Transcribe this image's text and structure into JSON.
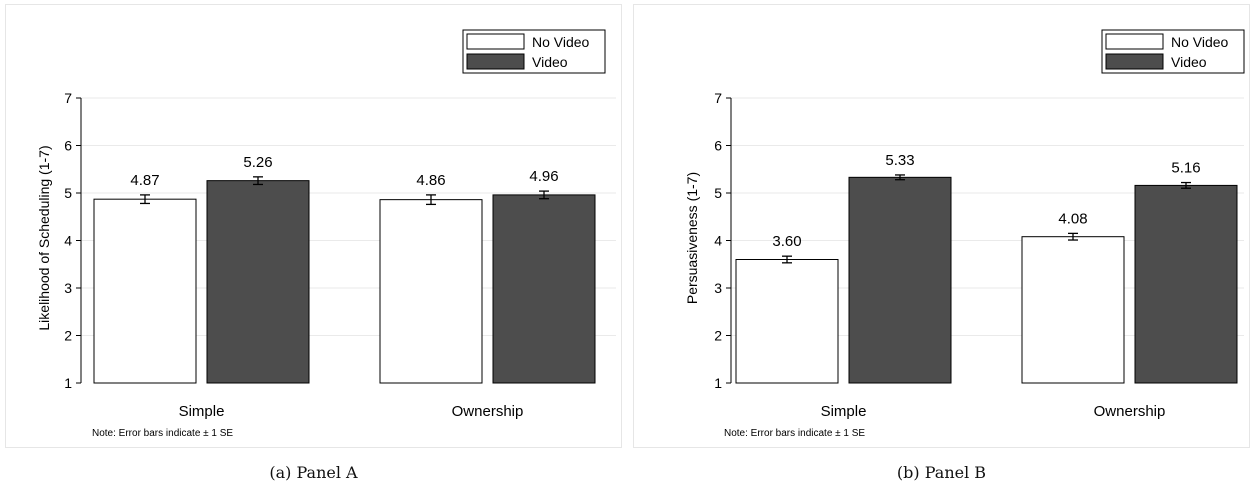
{
  "legend": {
    "no_video": "No Video",
    "video": "Video"
  },
  "colors": {
    "no_video_fill": "#ffffff",
    "video_fill": "#4d4d4d",
    "edge": "#000000",
    "grid": "#eaeaea"
  },
  "chart_data": [
    {
      "type": "bar",
      "panel_caption": "(a) Panel A",
      "ylabel": "Likelihood of Scheduling (1-7)",
      "ylim": [
        1,
        7
      ],
      "yticks": [
        "1",
        "2",
        "3",
        "4",
        "5",
        "6",
        "7"
      ],
      "categories": [
        "Simple",
        "Ownership"
      ],
      "series": [
        {
          "name": "No Video",
          "values": [
            4.87,
            4.86
          ],
          "labels": [
            "4.87",
            "4.86"
          ],
          "se": [
            0.09,
            0.1
          ]
        },
        {
          "name": "Video",
          "values": [
            5.26,
            4.96
          ],
          "labels": [
            "5.26",
            "4.96"
          ],
          "se": [
            0.08,
            0.08
          ]
        }
      ],
      "note": "Note: Error bars indicate ± 1 SE",
      "legend_position": "top-right",
      "grid": true
    },
    {
      "type": "bar",
      "panel_caption": "(b) Panel B",
      "ylabel": "Persuasiveness (1-7)",
      "ylim": [
        1,
        7
      ],
      "yticks": [
        "1",
        "2",
        "3",
        "4",
        "5",
        "6",
        "7"
      ],
      "categories": [
        "Simple",
        "Ownership"
      ],
      "series": [
        {
          "name": "No Video",
          "values": [
            3.6,
            4.08
          ],
          "labels": [
            "3.60",
            "4.08"
          ],
          "se": [
            0.07,
            0.07
          ]
        },
        {
          "name": "Video",
          "values": [
            5.33,
            5.16
          ],
          "labels": [
            "5.33",
            "5.16"
          ],
          "se": [
            0.05,
            0.06
          ]
        }
      ],
      "note": "Note: Error bars indicate ± 1 SE",
      "legend_position": "top-right",
      "grid": true
    }
  ]
}
